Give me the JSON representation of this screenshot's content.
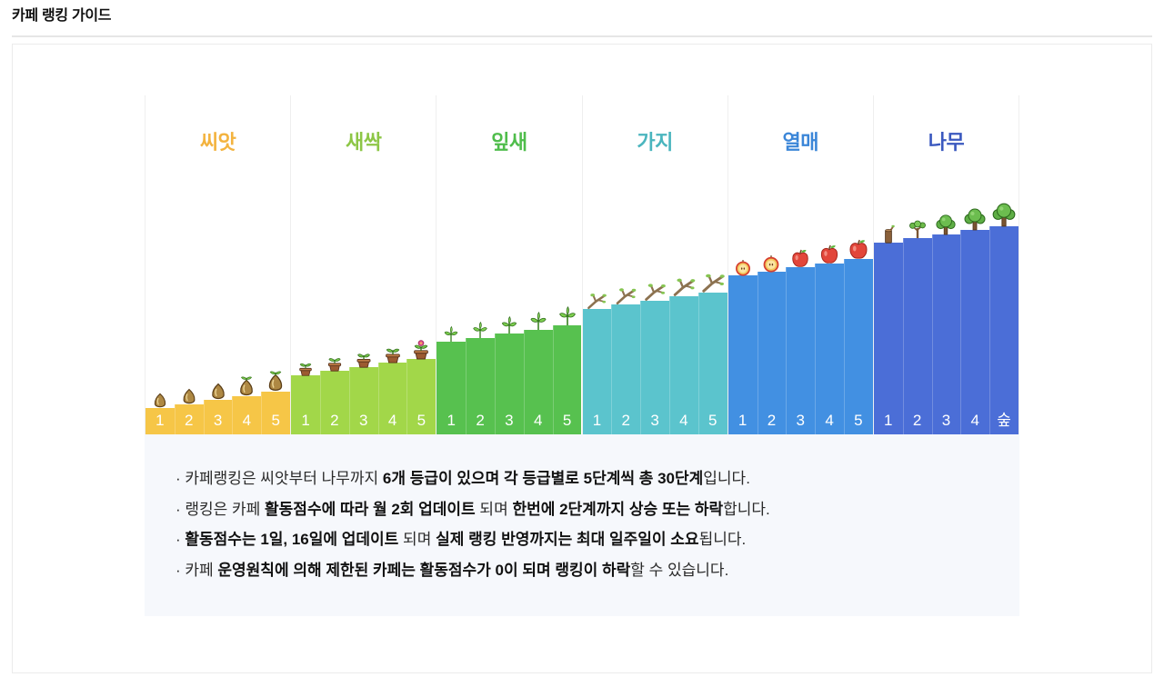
{
  "page": {
    "title": "카페 랭킹 가이드"
  },
  "ranking": {
    "tiers": [
      {
        "name": "씨앗",
        "label_color": "#F3B33F",
        "bar_color": "#F6C647",
        "steps": [
          {
            "label": "1",
            "icon": "seed-icon"
          },
          {
            "label": "2",
            "icon": "seed-icon"
          },
          {
            "label": "3",
            "icon": "seed-icon"
          },
          {
            "label": "4",
            "icon": "sprouting-seed-icon"
          },
          {
            "label": "5",
            "icon": "sprouting-seed-icon"
          }
        ]
      },
      {
        "name": "새싹",
        "label_color": "#8DC646",
        "bar_color": "#A2D749",
        "steps": [
          {
            "label": "1",
            "icon": "sprout-pot-icon"
          },
          {
            "label": "2",
            "icon": "sprout-pot-icon"
          },
          {
            "label": "3",
            "icon": "sprout-pot-icon"
          },
          {
            "label": "4",
            "icon": "sprout-pot-icon"
          },
          {
            "label": "5",
            "icon": "flower-pot-icon"
          }
        ]
      },
      {
        "name": "잎새",
        "label_color": "#4FBD4B",
        "bar_color": "#57C14F",
        "steps": [
          {
            "label": "1",
            "icon": "leaf-sprout-icon"
          },
          {
            "label": "2",
            "icon": "leaf-sprout-icon"
          },
          {
            "label": "3",
            "icon": "leaf-sprout-icon"
          },
          {
            "label": "4",
            "icon": "leaf-sprout-icon"
          },
          {
            "label": "5",
            "icon": "leaf-sprout-icon"
          }
        ]
      },
      {
        "name": "가지",
        "label_color": "#4AB5BE",
        "bar_color": "#5BC4CD",
        "steps": [
          {
            "label": "1",
            "icon": "branch-icon"
          },
          {
            "label": "2",
            "icon": "branch-icon"
          },
          {
            "label": "3",
            "icon": "branch-icon"
          },
          {
            "label": "4",
            "icon": "branch-icon"
          },
          {
            "label": "5",
            "icon": "branch-icon"
          }
        ]
      },
      {
        "name": "열매",
        "label_color": "#3B86D8",
        "bar_color": "#4290E2",
        "steps": [
          {
            "label": "1",
            "icon": "apple-half-icon"
          },
          {
            "label": "2",
            "icon": "apple-half-icon"
          },
          {
            "label": "3",
            "icon": "apple-icon"
          },
          {
            "label": "4",
            "icon": "apple-icon"
          },
          {
            "label": "5",
            "icon": "apple-icon"
          }
        ]
      },
      {
        "name": "나무",
        "label_color": "#3A58BF",
        "bar_color": "#4B6ED7",
        "steps": [
          {
            "label": "1",
            "icon": "stump-icon"
          },
          {
            "label": "2",
            "icon": "sapling-icon"
          },
          {
            "label": "3",
            "icon": "tree-icon"
          },
          {
            "label": "4",
            "icon": "tree-icon"
          },
          {
            "label": "숲",
            "icon": "tree-icon"
          }
        ]
      }
    ]
  },
  "guide": {
    "lines": [
      [
        "· 카페랭킹은 씨앗부터 나무까지 ",
        "6개 등급이 있으며 각 등급별로 5단계씩 총 30단계",
        "입니다."
      ],
      [
        "· 랭킹은 카페 ",
        "활동점수에 따라 월 2회 업데이트",
        " 되며 ",
        "한번에 2단계까지 상승 또는 하락",
        "합니다."
      ],
      [
        "· ",
        "활동점수는 1일, 16일에 업데이트",
        " 되며 ",
        "실제 랭킹 반영까지는 최대 일주일이 소요",
        "됩니다."
      ],
      [
        "· 카페 ",
        "운영원칙에 의해 제한된 카페는 활동점수가 0이 되며 랭킹이 하락",
        "할 수 있습니다."
      ]
    ]
  }
}
